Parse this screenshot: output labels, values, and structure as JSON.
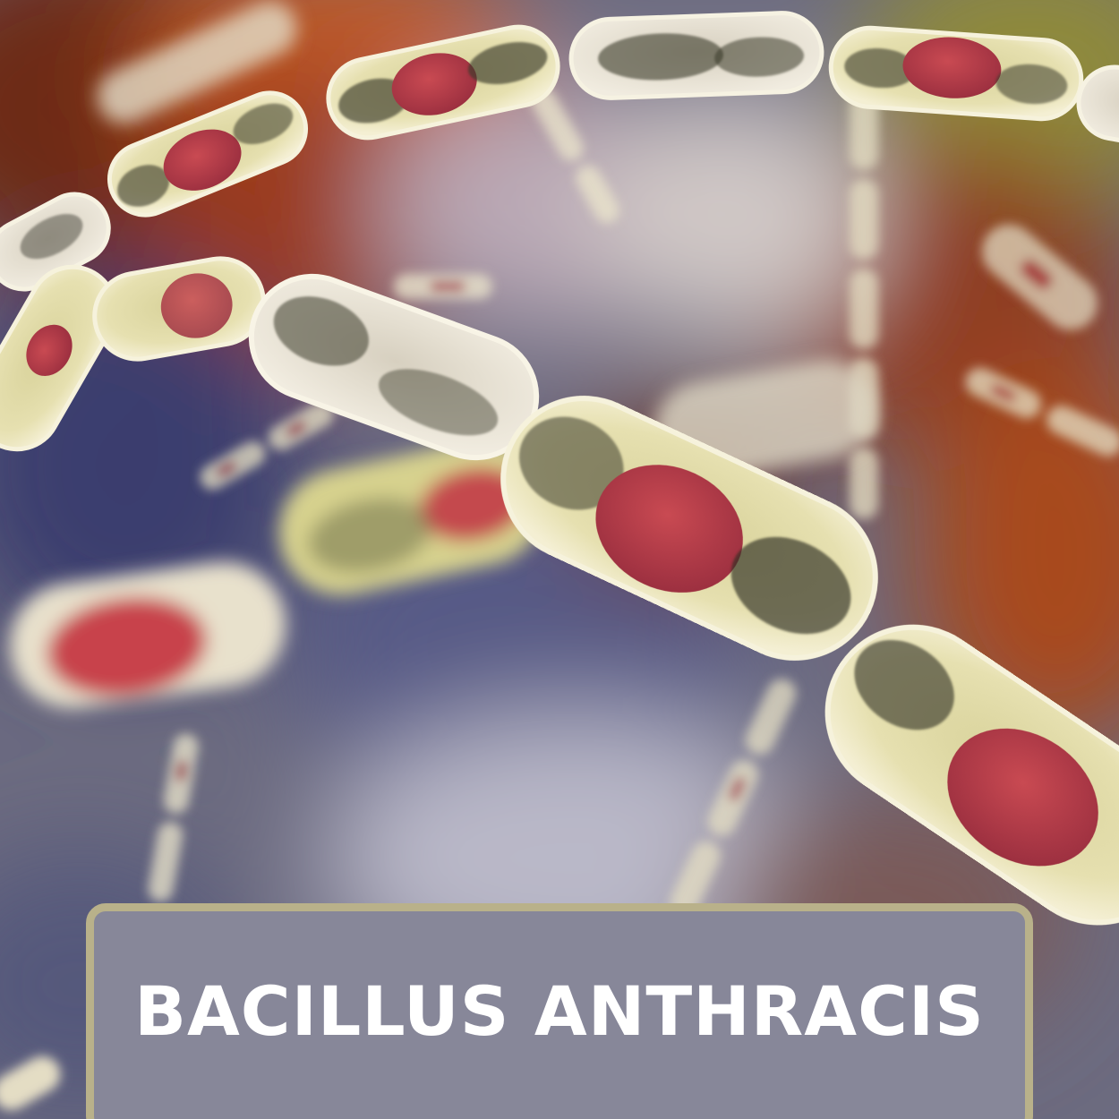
{
  "image": {
    "subject": "bacteria-illustration",
    "colors": {
      "background_warm": "#9b3a1c",
      "background_cool": "#4a4f78",
      "background_light": "#c9c6cf",
      "cell_body": "#e3dca7",
      "cell_dark": "#3a3a2a",
      "spore": "#b53a46",
      "panel_fill": "#878799",
      "panel_border": "#b9b18a"
    }
  },
  "caption": {
    "text": "BACILLUS ANTHRACIS"
  }
}
